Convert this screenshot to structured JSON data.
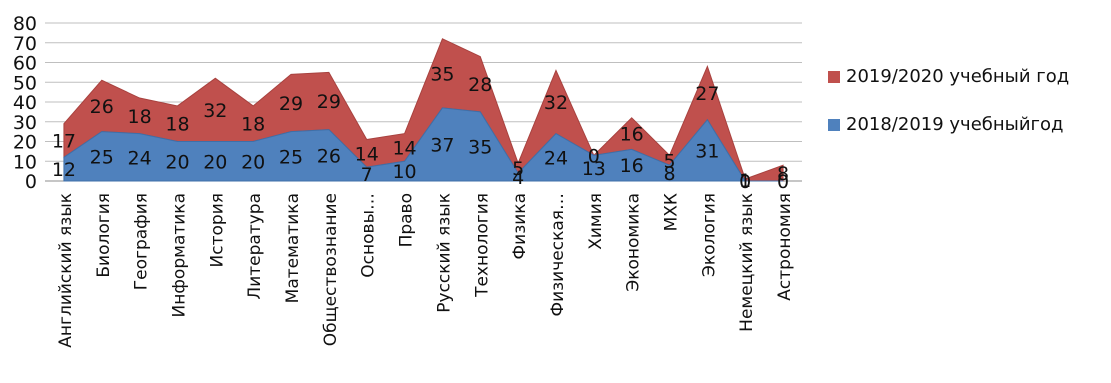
{
  "chart_data": {
    "type": "area",
    "stacked": true,
    "categories": [
      "Английский язык",
      "Биология",
      "География",
      "Информатика",
      "История",
      "Литература",
      "Математика",
      "Обществознание",
      "Основы…",
      "Право",
      "Русский язык",
      "Технология",
      "Физика",
      "Физическая…",
      "Химия",
      "Экономика",
      "МХК",
      "Экология",
      "Немецкий язык",
      "Астрономия"
    ],
    "series": [
      {
        "name": "2018/2019 учебныйгод",
        "color": "#4f81bd",
        "values": [
          12,
          25,
          24,
          20,
          20,
          20,
          25,
          26,
          7,
          10,
          37,
          35,
          4,
          24,
          13,
          16,
          8,
          31,
          0,
          0
        ]
      },
      {
        "name": "2019/2020 учебный год",
        "color": "#c0504d",
        "values": [
          17,
          26,
          18,
          18,
          32,
          18,
          29,
          29,
          14,
          14,
          35,
          28,
          5,
          32,
          0,
          16,
          5,
          27,
          1,
          8
        ]
      }
    ],
    "legend_order": [
      1,
      0
    ],
    "y_ticks": [
      "0",
      "10",
      "20",
      "30",
      "40",
      "50",
      "60",
      "70",
      "80"
    ],
    "ylim": [
      0,
      80
    ],
    "grid": true,
    "legend_position": "right"
  }
}
